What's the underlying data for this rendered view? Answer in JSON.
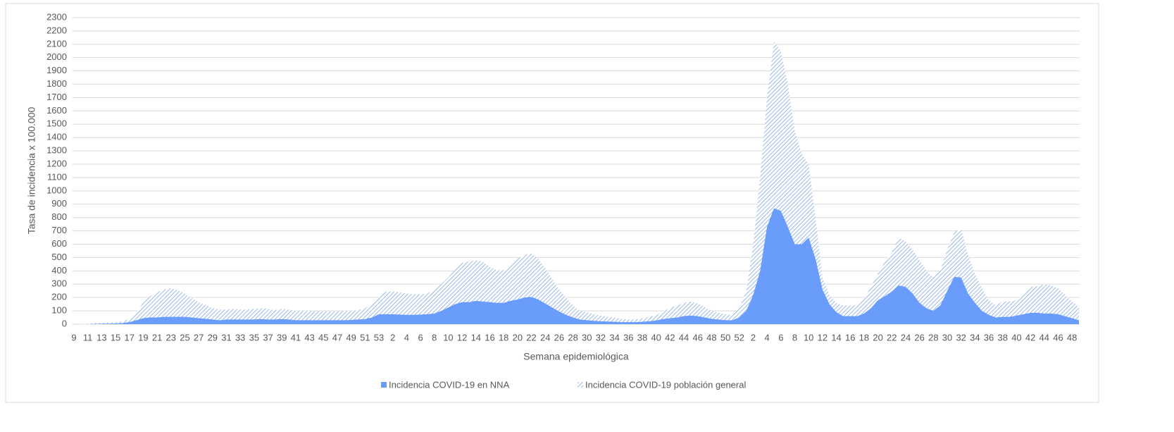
{
  "chart_data": {
    "type": "area",
    "y_label": "Tasa de incidencia x 100.000",
    "x_label": "Semana epidemiológica",
    "categories": [
      "9",
      null,
      "11",
      null,
      "13",
      null,
      "15",
      null,
      "17",
      null,
      "19",
      null,
      "21",
      null,
      "23",
      null,
      "25",
      null,
      "27",
      null,
      "29",
      null,
      "31",
      null,
      "33",
      null,
      "35",
      null,
      "37",
      null,
      "39",
      null,
      "41",
      null,
      "43",
      null,
      "45",
      null,
      "47",
      null,
      "49",
      null,
      "51",
      null,
      "53",
      null,
      "2",
      null,
      "4",
      null,
      "6",
      null,
      "8",
      null,
      "10",
      null,
      "12",
      null,
      "14",
      null,
      "16",
      null,
      "18",
      null,
      "20",
      null,
      "22",
      null,
      "24",
      null,
      "26",
      null,
      "28",
      null,
      "30",
      null,
      "32",
      null,
      "34",
      null,
      "36",
      null,
      "38",
      null,
      "40",
      null,
      "42",
      null,
      "44",
      null,
      "46",
      null,
      "48",
      null,
      "50",
      null,
      "52",
      null,
      "2",
      null,
      "4",
      null,
      "6",
      null,
      "8",
      null,
      "10",
      null,
      "12",
      null,
      "14",
      null,
      "16",
      null,
      "18",
      null,
      "20",
      null,
      "22",
      null,
      "24",
      null,
      "26",
      null,
      "28",
      null,
      "30",
      null,
      "32",
      null,
      "34",
      null,
      "36",
      null,
      "38",
      null,
      "40",
      null,
      "42",
      null,
      "44",
      null,
      "46",
      null,
      "48",
      null
    ],
    "series": [
      {
        "name": "Incidencia COVID-19 en NNA",
        "color": "#6a9cfb",
        "fill": "solid",
        "values": [
          0,
          0,
          0,
          2,
          3,
          4,
          5,
          8,
          15,
          30,
          45,
          50,
          50,
          55,
          55,
          55,
          55,
          50,
          45,
          40,
          35,
          30,
          35,
          35,
          35,
          35,
          35,
          38,
          35,
          35,
          38,
          35,
          30,
          30,
          30,
          30,
          30,
          30,
          30,
          30,
          32,
          35,
          38,
          50,
          75,
          75,
          75,
          72,
          70,
          70,
          72,
          75,
          80,
          100,
          125,
          150,
          165,
          165,
          175,
          170,
          165,
          160,
          160,
          175,
          185,
          200,
          205,
          185,
          155,
          125,
          95,
          70,
          50,
          35,
          30,
          25,
          22,
          20,
          18,
          15,
          15,
          15,
          18,
          22,
          28,
          38,
          45,
          50,
          60,
          65,
          60,
          50,
          40,
          35,
          30,
          30,
          50,
          100,
          220,
          400,
          730,
          870,
          850,
          730,
          600,
          600,
          650,
          490,
          260,
          150,
          90,
          60,
          60,
          60,
          80,
          120,
          180,
          210,
          245,
          290,
          280,
          230,
          160,
          120,
          100,
          140,
          250,
          355,
          350,
          230,
          160,
          100,
          70,
          50,
          55,
          55,
          65,
          75,
          85,
          85,
          80,
          80,
          75,
          60,
          45,
          30
        ]
      },
      {
        "name": "Incidencia COVID-19 población general",
        "color": "#7fa6e6",
        "fill": "hatch",
        "values": [
          0,
          0,
          5,
          8,
          10,
          12,
          15,
          20,
          40,
          90,
          160,
          210,
          240,
          260,
          270,
          255,
          230,
          195,
          165,
          145,
          120,
          110,
          110,
          115,
          110,
          110,
          115,
          120,
          115,
          105,
          115,
          110,
          100,
          100,
          100,
          95,
          95,
          95,
          95,
          100,
          100,
          105,
          120,
          150,
          200,
          245,
          245,
          240,
          230,
          225,
          225,
          230,
          260,
          300,
          350,
          410,
          460,
          470,
          480,
          470,
          430,
          405,
          405,
          450,
          490,
          520,
          530,
          490,
          420,
          340,
          260,
          200,
          140,
          100,
          90,
          75,
          65,
          55,
          50,
          40,
          35,
          35,
          45,
          55,
          65,
          95,
          120,
          140,
          160,
          170,
          155,
          130,
          100,
          85,
          75,
          70,
          120,
          250,
          600,
          1100,
          1700,
          2120,
          2050,
          1800,
          1450,
          1280,
          1200,
          800,
          350,
          220,
          160,
          140,
          140,
          145,
          190,
          280,
          380,
          470,
          540,
          650,
          620,
          560,
          480,
          400,
          350,
          400,
          560,
          690,
          720,
          520,
          380,
          270,
          180,
          140,
          170,
          170,
          180,
          230,
          280,
          285,
          300,
          290,
          270,
          220,
          170,
          130
        ]
      }
    ],
    "ylim": [
      0,
      2300
    ],
    "yticks": [
      0,
      100,
      200,
      300,
      400,
      500,
      600,
      700,
      800,
      900,
      1000,
      1100,
      1200,
      1300,
      1400,
      1500,
      1600,
      1700,
      1800,
      1900,
      2000,
      2100,
      2200,
      2300
    ],
    "grid": true,
    "legend": "bottom"
  }
}
